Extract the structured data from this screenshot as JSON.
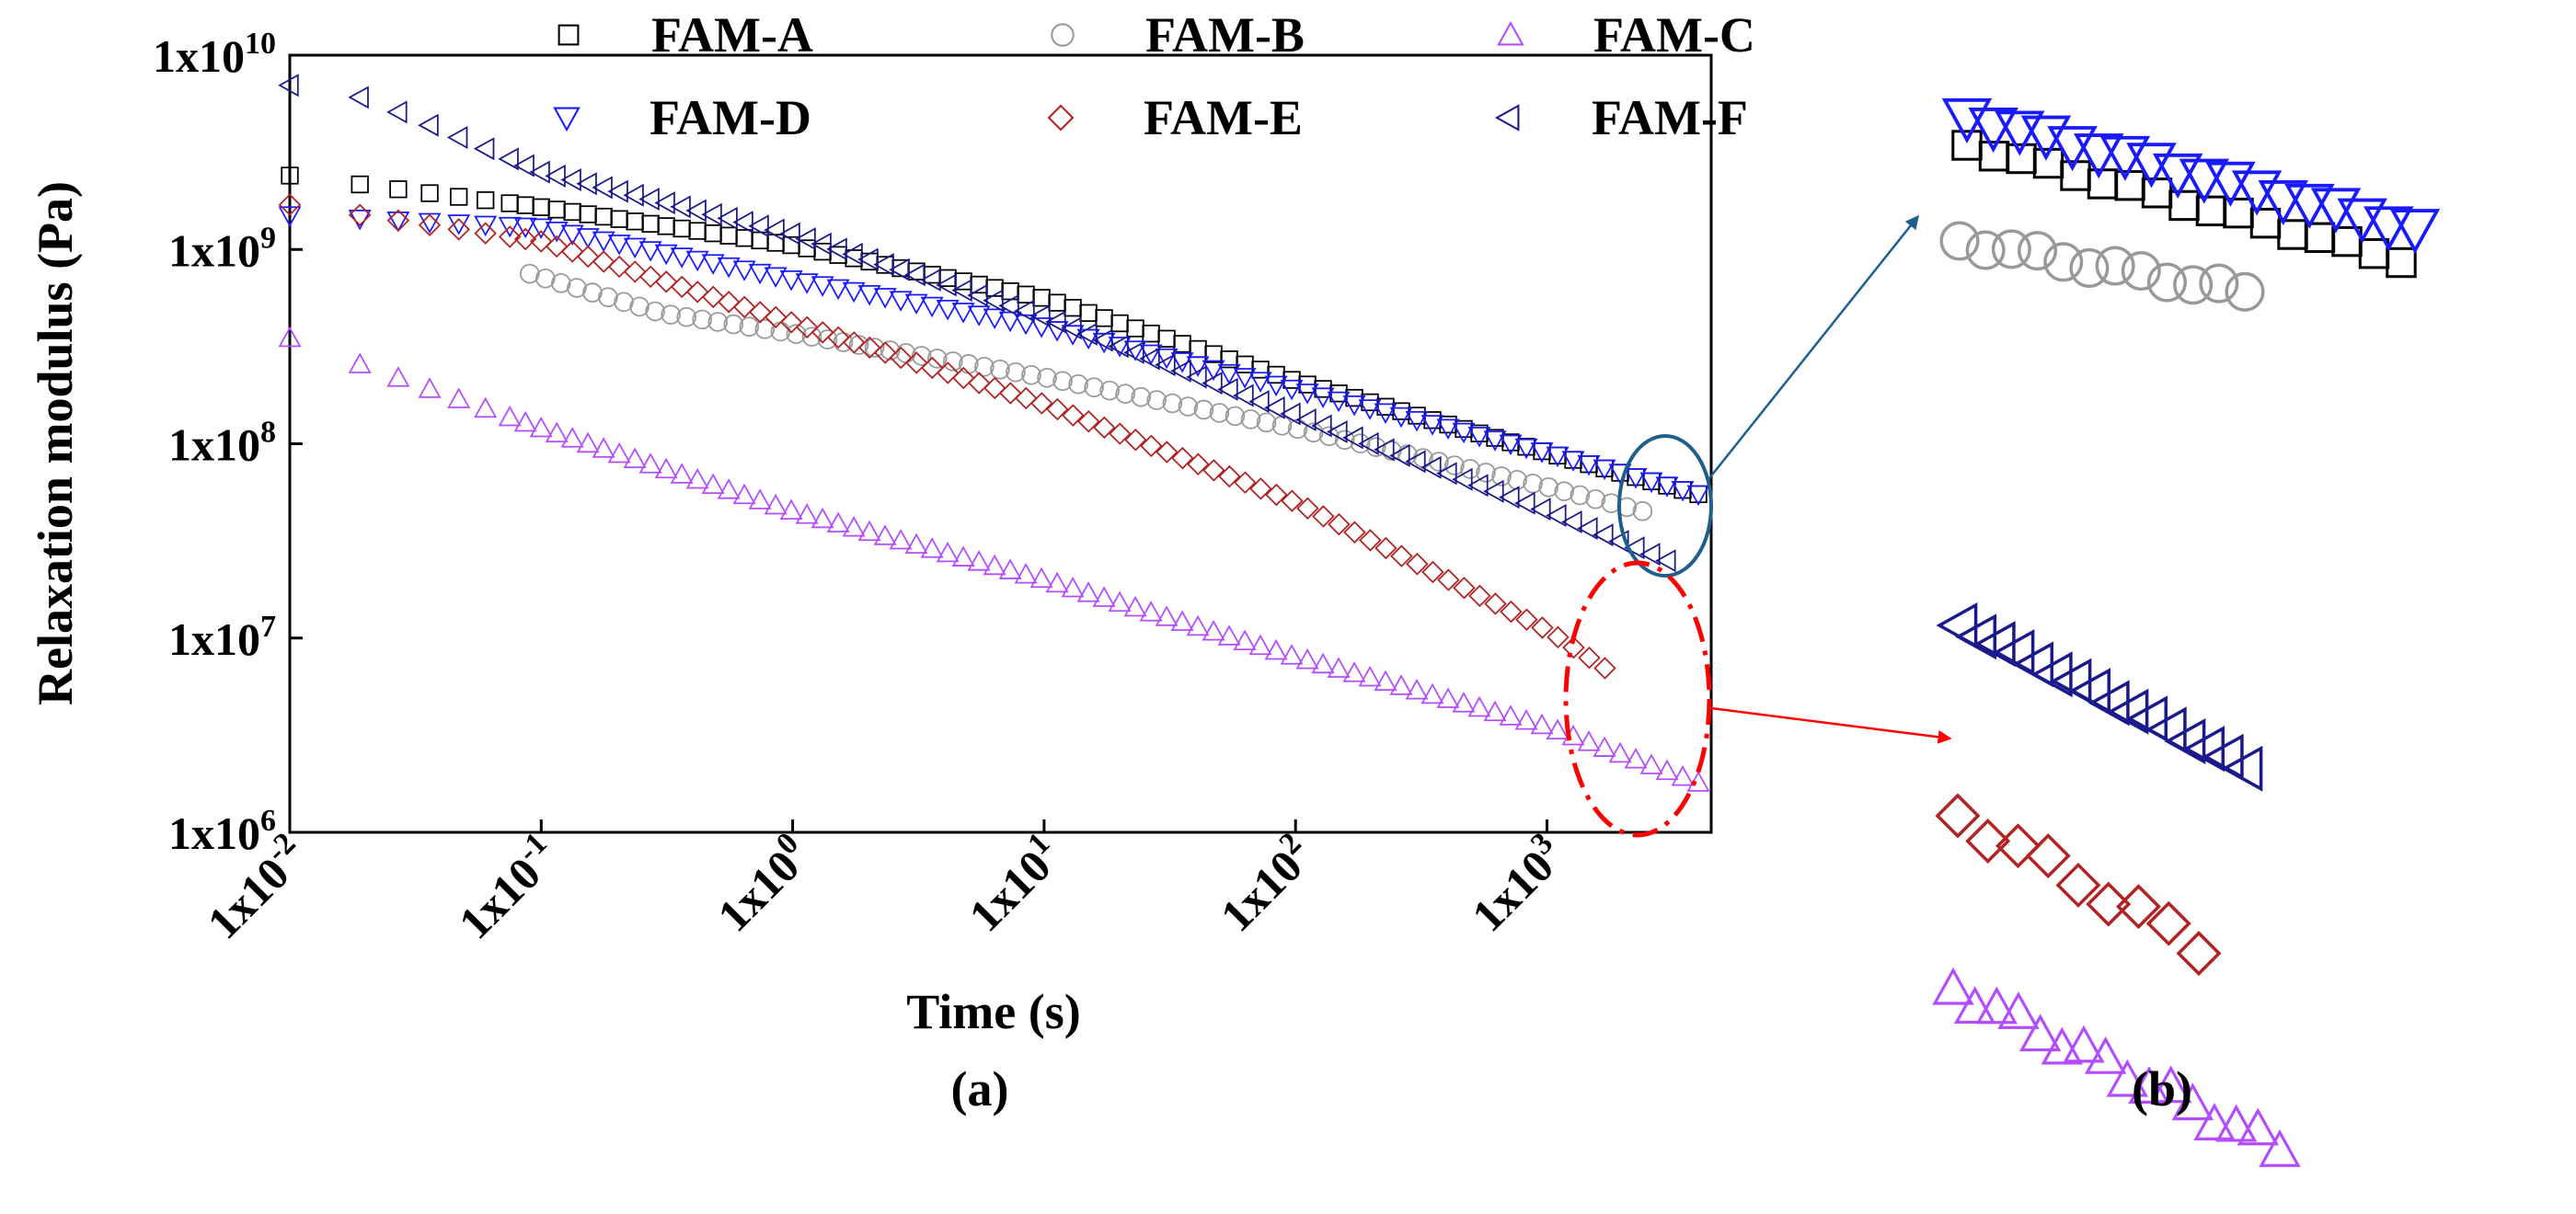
{
  "chart_data": [
    {
      "type": "scatter",
      "panel": "(a)",
      "xlabel": "Time (s)",
      "ylabel": "Relaxation modulus (Pa)",
      "xscale": "log",
      "yscale": "log",
      "xlim": [
        0.01,
        4500
      ],
      "ylim": [
        1000000,
        10000000000
      ],
      "x_ticks": [
        {
          "value": 0.01,
          "base": "1x10",
          "exp": "-2"
        },
        {
          "value": 0.1,
          "base": "1x10",
          "exp": "-1"
        },
        {
          "value": 1,
          "base": "1x10",
          "exp": "0"
        },
        {
          "value": 10,
          "base": "1x10",
          "exp": "1"
        },
        {
          "value": 100,
          "base": "1x10",
          "exp": "2"
        },
        {
          "value": 1000,
          "base": "1x10",
          "exp": "3"
        }
      ],
      "y_ticks": [
        {
          "value": 1000000,
          "base": "1x10",
          "exp": "6"
        },
        {
          "value": 10000000,
          "base": "1x10",
          "exp": "7"
        },
        {
          "value": 100000000,
          "base": "1x10",
          "exp": "8"
        },
        {
          "value": 1000000000,
          "base": "1x10",
          "exp": "9"
        },
        {
          "value": 10000000000,
          "base": "1x10",
          "exp": "10"
        }
      ],
      "legend_position": "top",
      "series": [
        {
          "name": "FAM-A",
          "marker": "square",
          "color": "#000000",
          "x_range": [
            0.01,
            4000
          ],
          "y_anchors": [
            [
              0.01,
              2400000000
            ],
            [
              0.1,
              1650000000
            ],
            [
              1,
              1050000000
            ],
            [
              10,
              560000000
            ],
            [
              100,
              210000000
            ],
            [
              1000,
              90000000
            ],
            [
              4000,
              55000000
            ]
          ]
        },
        {
          "name": "FAM-B",
          "marker": "circle",
          "color": "#999999",
          "x_range": [
            0.09,
            2400
          ],
          "y_anchors": [
            [
              0.09,
              750000000
            ],
            [
              0.3,
              470000000
            ],
            [
              1,
              370000000
            ],
            [
              10,
              220000000
            ],
            [
              100,
              120000000
            ],
            [
              1000,
              60000000
            ],
            [
              2400,
              45000000
            ]
          ]
        },
        {
          "name": "FAM-C",
          "marker": "triangle-up",
          "color": "#b34dff",
          "x_range": [
            0.01,
            4000
          ],
          "y_anchors": [
            [
              0.01,
              350000000
            ],
            [
              0.02,
              250000000
            ],
            [
              0.1,
              120000000
            ],
            [
              1,
              45000000
            ],
            [
              10,
              20000000
            ],
            [
              100,
              8000000
            ],
            [
              1000,
              3500000
            ],
            [
              4000,
              1800000
            ]
          ]
        },
        {
          "name": "FAM-D",
          "marker": "triangle-down",
          "color": "#1a1aff",
          "x_range": [
            0.01,
            4000
          ],
          "y_anchors": [
            [
              0.01,
              1500000000
            ],
            [
              0.1,
              1300000000
            ],
            [
              1,
              700000000
            ],
            [
              10,
              400000000
            ],
            [
              100,
              190000000
            ],
            [
              1000,
              90000000
            ],
            [
              4000,
              55000000
            ]
          ]
        },
        {
          "name": "FAM-E",
          "marker": "diamond",
          "color": "#b22222",
          "x_range": [
            0.01,
            1700
          ],
          "y_anchors": [
            [
              0.01,
              1700000000
            ],
            [
              0.1,
              1100000000
            ],
            [
              1,
              420000000
            ],
            [
              10,
              160000000
            ],
            [
              100,
              50000000
            ],
            [
              1000,
              11000000
            ],
            [
              1700,
              7000000
            ]
          ]
        },
        {
          "name": "FAM-F",
          "marker": "triangle-left",
          "color": "#1a1a8c",
          "x_range": [
            0.01,
            3000
          ],
          "y_anchors": [
            [
              0.01,
              7000000000
            ],
            [
              0.02,
              6000000000
            ],
            [
              0.1,
              2500000000
            ],
            [
              1,
              1200000000
            ],
            [
              10,
              450000000
            ],
            [
              100,
              140000000
            ],
            [
              1000,
              45000000
            ],
            [
              3000,
              25000000
            ]
          ]
        }
      ],
      "annotations": [
        {
          "type": "ellipse",
          "style": "solid",
          "color": "#1f5f8b",
          "encloses": "FAM-A, FAM-B, FAM-D, FAM-F near t≈3000 s",
          "arrow_to": "panel (b) top"
        },
        {
          "type": "ellipse",
          "style": "dash-dot",
          "color": "#ff0000",
          "encloses": "FAM-C, FAM-E near t≈3000 s",
          "arrow_to": "panel (b) bottom"
        }
      ]
    },
    {
      "type": "scatter",
      "panel": "(b)",
      "description_role": "magnified tails of panel (a)",
      "groups": [
        {
          "series": [
            "FAM-D",
            "FAM-A",
            "FAM-B"
          ],
          "colors": [
            "#1a1aff",
            "#000000",
            "#999999"
          ]
        },
        {
          "series": [
            "FAM-F"
          ],
          "colors": [
            "#1a1a8c"
          ]
        },
        {
          "series": [
            "FAM-E",
            "FAM-C"
          ],
          "colors": [
            "#b22222",
            "#b34dff"
          ]
        }
      ]
    }
  ],
  "legend": [
    {
      "label": "FAM-A",
      "marker": "square",
      "color": "#000000"
    },
    {
      "label": "FAM-B",
      "marker": "circle",
      "color": "#999999"
    },
    {
      "label": "FAM-C",
      "marker": "triangle-up",
      "color": "#b34dff"
    },
    {
      "label": "FAM-D",
      "marker": "triangle-down",
      "color": "#1a1aff"
    },
    {
      "label": "FAM-E",
      "marker": "diamond",
      "color": "#b22222"
    },
    {
      "label": "FAM-F",
      "marker": "triangle-left",
      "color": "#1a1a8c"
    }
  ],
  "labels": {
    "panel_a": "(a)",
    "panel_b": "(b)",
    "xlabel": "Time (s)",
    "ylabel": "Relaxation modulus (Pa)"
  }
}
